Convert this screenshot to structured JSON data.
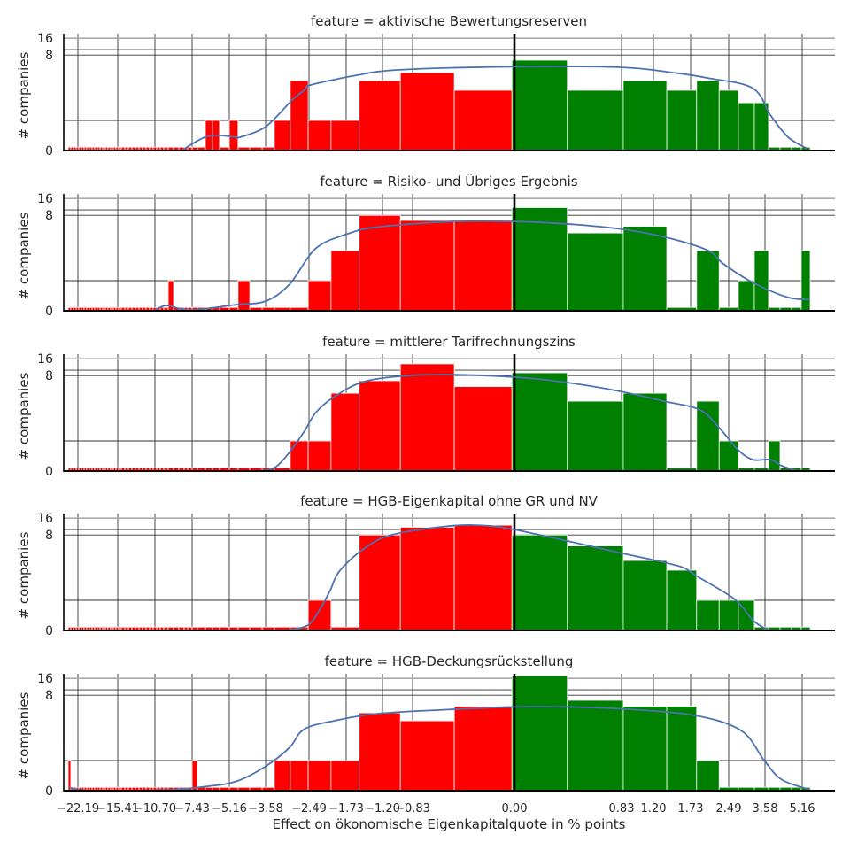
{
  "chart_data": {
    "type": "bar",
    "subtype": "faceted histogram with kde",
    "xlabel": "Effect on ökonomische Eigenkapitalquote in % points",
    "ylabel": "# companies",
    "x_ticks": [
      -22.19,
      -15.41,
      -10.7,
      -7.43,
      -5.16,
      -3.58,
      -2.49,
      -1.73,
      -1.2,
      -0.83,
      0.0,
      0.83,
      1.2,
      1.73,
      2.49,
      3.58,
      5.16
    ],
    "x_tick_labels": [
      "−22.19",
      "−15.41",
      "−10.70",
      "−7.43",
      "−5.16",
      "−3.58",
      "−2.49",
      "−1.73",
      "−1.20",
      "−0.83",
      "0.00",
      "0.83",
      "1.20",
      "1.73",
      "2.49",
      "3.58",
      "5.16"
    ],
    "y_ticks": [
      0,
      8,
      16
    ],
    "y_tick_labels": [
      "0",
      "8",
      "16"
    ],
    "y_gridlines": [
      1,
      8,
      10,
      16
    ],
    "ylim": [
      0,
      16
    ],
    "grid": true,
    "colors": {
      "negative": "#ff0000",
      "positive": "#008000",
      "kde": "#4c72b0",
      "zero_line": "#000000"
    },
    "bin_edges": [
      -23.85,
      -23.4,
      -22.94,
      -22.49,
      -22.04,
      -21.59,
      -21.14,
      -20.68,
      -20.23,
      -19.78,
      -19.33,
      -18.88,
      -18.42,
      -17.97,
      -17.52,
      -17.07,
      -16.62,
      -16.16,
      -15.71,
      -15.3,
      -14.96,
      -14.51,
      -14.06,
      -13.62,
      -13.17,
      -12.72,
      -12.28,
      -11.83,
      -11.38,
      -10.93,
      -10.54,
      -10.23,
      -9.92,
      -9.53,
      -9.06,
      -8.6,
      -8.13,
      -7.82,
      -7.43,
      -7.11,
      -6.62,
      -6.19,
      -5.76,
      -5.16,
      -4.78,
      -4.27,
      -3.73,
      -3.36,
      -2.96,
      -2.51,
      -2.04,
      -1.54,
      -0.98,
      -0.49,
      -0.02,
      0.41,
      0.85,
      1.39,
      1.85,
      2.3,
      2.78,
      3.26,
      3.73,
      4.22,
      4.71,
      5.12,
      5.5
    ],
    "panels": [
      {
        "title": "feature = aktivische Bewertungsreserven",
        "counts": [
          0.08,
          0.08,
          0.08,
          0.08,
          0.08,
          0.08,
          0.08,
          0.08,
          0.08,
          0.08,
          0.08,
          0.08,
          0.08,
          0.08,
          0.08,
          0.08,
          0.08,
          0.08,
          0.08,
          0.08,
          0.08,
          0.08,
          0.08,
          0.08,
          0.08,
          0.08,
          0.08,
          0.08,
          0.08,
          0.08,
          0.08,
          0.08,
          0.08,
          0.08,
          0.08,
          0.08,
          0.08,
          0.08,
          0.08,
          0.08,
          1,
          1,
          0.08,
          1,
          0.08,
          0.08,
          0.08,
          1,
          4,
          1,
          1,
          4,
          5,
          3,
          7,
          3,
          4,
          3,
          4,
          3,
          2,
          2,
          0.08,
          0.08,
          0.08,
          0.08
        ],
        "kde": [
          [
            -8.36,
            0
          ],
          [
            -6.46,
            0.39
          ],
          [
            -4.93,
            0.37
          ],
          [
            -4.74,
            0.35
          ],
          [
            -3.58,
            0.73
          ],
          [
            -2.91,
            2.2
          ],
          [
            -2.58,
            3.1
          ],
          [
            -2.47,
            3.5
          ],
          [
            -1.61,
            4.6
          ],
          [
            -1.0,
            5.4
          ],
          [
            0,
            5.9
          ],
          [
            0.82,
            5.8
          ],
          [
            1.48,
            5.0
          ],
          [
            2.08,
            4.3
          ],
          [
            3.21,
            3.2
          ],
          [
            3.81,
            1.26
          ],
          [
            4.56,
            0.36
          ],
          [
            5.39,
            0.04
          ]
        ]
      },
      {
        "title": "feature = Risiko- und Übriges Ergebnis",
        "counts": [
          0.08,
          0.08,
          0.08,
          0.08,
          0.08,
          0.08,
          0.08,
          0.08,
          0.08,
          0.08,
          0.08,
          0.08,
          0.08,
          0.08,
          0.08,
          0.08,
          0.08,
          0.08,
          0.08,
          0.08,
          0.08,
          0.08,
          0.08,
          0.08,
          0.08,
          0.08,
          0.08,
          0.08,
          0.08,
          0.08,
          0.08,
          0.08,
          0.08,
          1,
          0.08,
          0.08,
          0.08,
          0.08,
          0.08,
          0.08,
          0.08,
          0.08,
          0.08,
          0.08,
          1,
          0.08,
          0.08,
          0.08,
          0.08,
          1,
          3,
          8,
          7,
          7,
          11,
          5,
          6,
          0.08,
          3,
          0.08,
          1,
          3,
          0.08,
          0.08,
          0.08,
          3
        ],
        "kde": [
          [
            -10.93,
            0
          ],
          [
            -9.69,
            0.13
          ],
          [
            -8.52,
            0.05
          ],
          [
            -7.27,
            0.02
          ],
          [
            -4.85,
            0.15
          ],
          [
            -3.58,
            0.25
          ],
          [
            -2.98,
            0.84
          ],
          [
            -2.35,
            3.2
          ],
          [
            -1.7,
            4.9
          ],
          [
            -1.26,
            5.9
          ],
          [
            -0.51,
            6.8
          ],
          [
            0.01,
            6.8
          ],
          [
            0.4,
            6.4
          ],
          [
            0.81,
            5.6
          ],
          [
            1.39,
            4.4
          ],
          [
            2.08,
            3.0
          ],
          [
            2.38,
            1.95
          ],
          [
            3.21,
            0.92
          ],
          [
            4.56,
            0.36
          ],
          [
            5.5,
            0.3
          ]
        ]
      },
      {
        "title": "feature = mittlerer Tarifrechnungszins",
        "counts": [
          0.08,
          0.08,
          0.08,
          0.08,
          0.08,
          0.08,
          0.08,
          0.08,
          0.08,
          0.08,
          0.08,
          0.08,
          0.08,
          0.08,
          0.08,
          0.08,
          0.08,
          0.08,
          0.08,
          0.08,
          0.08,
          0.08,
          0.08,
          0.08,
          0.08,
          0.08,
          0.08,
          0.08,
          0.08,
          0.08,
          0.08,
          0.08,
          0.08,
          0.08,
          0.08,
          0.08,
          0.08,
          0.08,
          0.08,
          0.08,
          0.08,
          0.08,
          0.08,
          0.08,
          0.08,
          0.08,
          0.08,
          0.08,
          1,
          1,
          5,
          7,
          13,
          6,
          9,
          4,
          5,
          0.08,
          4,
          1,
          0.08,
          0.08,
          1,
          0.08,
          0.08,
          0.08
        ],
        "kde": [
          [
            -3.95,
            0
          ],
          [
            -3.36,
            0.08
          ],
          [
            -2.98,
            0.54
          ],
          [
            -2.62,
            1.45
          ],
          [
            -2.35,
            2.85
          ],
          [
            -1.98,
            4.5
          ],
          [
            -1.48,
            6.8
          ],
          [
            -0.89,
            8
          ],
          [
            -0.51,
            8.3
          ],
          [
            0,
            7.7
          ],
          [
            0.4,
            6.7
          ],
          [
            0.81,
            5.3
          ],
          [
            1.35,
            4.0
          ],
          [
            1.91,
            3.1
          ],
          [
            2.32,
            1.64
          ],
          [
            2.76,
            0.64
          ],
          [
            3.21,
            0.3
          ],
          [
            3.81,
            0.3
          ],
          [
            4.29,
            0.13
          ],
          [
            4.93,
            0
          ]
        ]
      },
      {
        "title": "feature = HGB-Eigenkapital ohne GR und NV",
        "counts": [
          0.08,
          0.08,
          0.08,
          0.08,
          0.08,
          0.08,
          0.08,
          0.08,
          0.08,
          0.08,
          0.08,
          0.08,
          0.08,
          0.08,
          0.08,
          0.08,
          0.08,
          0.08,
          0.08,
          0.08,
          0.08,
          0.08,
          0.08,
          0.08,
          0.08,
          0.08,
          0.08,
          0.08,
          0.08,
          0.08,
          0.08,
          0.08,
          0.08,
          0.08,
          0.08,
          0.08,
          0.08,
          0.08,
          0.08,
          0.08,
          0.08,
          0.08,
          0.08,
          0.08,
          0.08,
          0.08,
          0.08,
          0.08,
          0.08,
          1,
          0.08,
          8,
          11,
          12,
          8,
          6,
          4,
          3,
          1,
          1,
          1,
          0.08,
          0.08,
          0.08,
          0.08,
          0.08
        ],
        "kde": [
          [
            -3.06,
            0
          ],
          [
            -2.53,
            0.12
          ],
          [
            -2.29,
            0.56
          ],
          [
            -2.06,
            1.5
          ],
          [
            -1.87,
            2.9
          ],
          [
            -1.48,
            5.5
          ],
          [
            -1.08,
            8.1
          ],
          [
            -0.51,
            11.7
          ],
          [
            -0.22,
            11.7
          ],
          [
            0,
            10
          ],
          [
            0.4,
            6.9
          ],
          [
            0.81,
            5.0
          ],
          [
            1.35,
            3.8
          ],
          [
            1.64,
            3.2
          ],
          [
            1.85,
            2.5
          ],
          [
            2.68,
            1.04
          ],
          [
            3.21,
            0.27
          ],
          [
            3.69,
            0.02
          ],
          [
            4.07,
            0
          ]
        ]
      },
      {
        "title": "feature = HGB-Deckungsrückstellung",
        "counts": [
          1,
          0.08,
          0.08,
          0.08,
          0.08,
          0.08,
          0.08,
          0.08,
          0.08,
          0.08,
          0.08,
          0.08,
          0.08,
          0.08,
          0.08,
          0.08,
          0.08,
          0.08,
          0.08,
          0.08,
          0.08,
          0.08,
          0.08,
          0.08,
          0.08,
          0.08,
          0.08,
          0.08,
          0.08,
          0.08,
          0.08,
          0.08,
          0.08,
          0.08,
          0.08,
          0.08,
          0.08,
          0.08,
          1,
          0.08,
          0.08,
          0.08,
          0.08,
          0.08,
          0.08,
          0.08,
          0.08,
          1,
          1,
          1,
          1,
          5,
          4,
          6,
          18,
          7,
          6,
          6,
          1,
          0.08,
          0.08,
          0.08,
          0.08,
          0.08,
          0.08,
          0.08
        ],
        "kde": [
          [
            -23.7,
            0.08
          ],
          [
            -21.4,
            0.01
          ],
          [
            -16.3,
            0
          ],
          [
            -9.3,
            0.02
          ],
          [
            -6.57,
            0.1
          ],
          [
            -4.85,
            0.24
          ],
          [
            -3.58,
            0.75
          ],
          [
            -2.98,
            1.7
          ],
          [
            -2.62,
            3.1
          ],
          [
            -1.98,
            4.0
          ],
          [
            -1.26,
            4.9
          ],
          [
            -0.51,
            5.5
          ],
          [
            0.01,
            5.9
          ],
          [
            0.4,
            5.9
          ],
          [
            0.81,
            5.6
          ],
          [
            1.78,
            4.7
          ],
          [
            2.86,
            3.0
          ],
          [
            3.56,
            1.0
          ],
          [
            4.29,
            0.29
          ],
          [
            5.5,
            0.02
          ]
        ]
      }
    ]
  }
}
